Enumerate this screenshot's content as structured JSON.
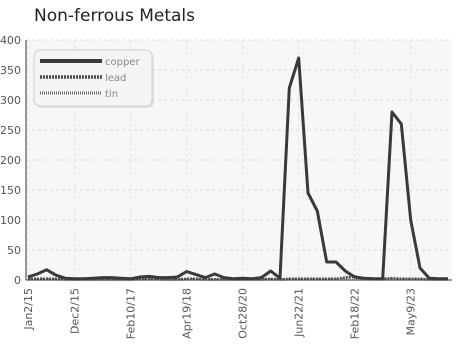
{
  "chart_data": {
    "type": "line",
    "title": "Non-ferrous Metals",
    "xlabel": "",
    "ylabel": "",
    "ylim": [
      0,
      400
    ],
    "y_ticks": [
      0,
      50,
      100,
      150,
      200,
      250,
      300,
      350,
      400
    ],
    "x_tick_labels": [
      "Jan2/15",
      "Dec2/15",
      "Feb10/17",
      "Apr19/18",
      "Oct28/20",
      "Jun22/21",
      "Feb18/22",
      "May9/23"
    ],
    "grid": true,
    "legend_position": "top-left",
    "series": [
      {
        "name": "copper",
        "color": "#3a3a3a",
        "style": "solid",
        "values": [
          5,
          10,
          17,
          8,
          3,
          2,
          2,
          3,
          4,
          4,
          3,
          2,
          5,
          6,
          4,
          4,
          5,
          14,
          9,
          4,
          10,
          4,
          2,
          3,
          2,
          4,
          15,
          3,
          320,
          370,
          145,
          115,
          30,
          30,
          15,
          5,
          3,
          2,
          2,
          280,
          260,
          100,
          20,
          3,
          2,
          2
        ]
      },
      {
        "name": "lead",
        "color": "#4a4a4a",
        "style": "dashed",
        "values": [
          2,
          2,
          2,
          2,
          1,
          1,
          1,
          1,
          1,
          1,
          1,
          1,
          2,
          2,
          2,
          1,
          1,
          2,
          2,
          1,
          1,
          1,
          1,
          1,
          1,
          1,
          2,
          1,
          2,
          2,
          2,
          2,
          2,
          2,
          4,
          6,
          3,
          2,
          2,
          3,
          2,
          2,
          2,
          1,
          1,
          1
        ]
      },
      {
        "name": "tin",
        "color": "#6a6a6a",
        "style": "dotted",
        "values": [
          1,
          1,
          1,
          1,
          1,
          1,
          1,
          1,
          1,
          1,
          1,
          1,
          1,
          1,
          1,
          1,
          1,
          1,
          1,
          1,
          1,
          1,
          1,
          1,
          1,
          1,
          1,
          1,
          1,
          1,
          1,
          1,
          1,
          1,
          1,
          1,
          1,
          1,
          1,
          1,
          1,
          1,
          1,
          1,
          1,
          1
        ]
      }
    ]
  }
}
